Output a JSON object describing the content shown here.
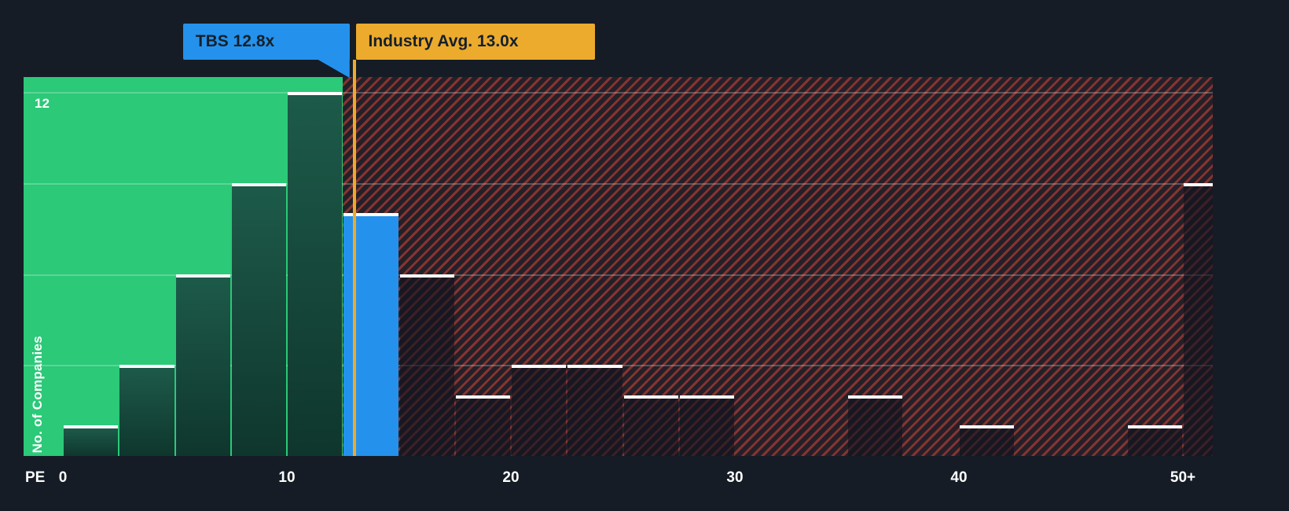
{
  "theme": {
    "background": "#151c26",
    "green": "#2bc978",
    "green_bar_top": "#1d5a49",
    "green_bar_bottom": "#0f362d",
    "blue": "#2492ec",
    "orange": "#ecab2d",
    "hatch_line": "rgba(224,75,58,0.5)",
    "hatch_bg": "rgba(224,75,58,0.08)",
    "dark_bar": "rgba(15,20,30,0.62)",
    "flag_text": "#15202b",
    "axis_text": "#ffffff"
  },
  "chart_data": {
    "type": "bar",
    "xlabel": "PE",
    "ylabel": "No. of Companies",
    "y_axis_top_label": "12",
    "xlim": [
      0,
      52.5
    ],
    "ylim": [
      0,
      12.5
    ],
    "gridlines_y": [
      3,
      6,
      9,
      12
    ],
    "bin_width": 2.5,
    "region_boundary": 12.5,
    "x_ticks": [
      {
        "value": 0,
        "label": "0"
      },
      {
        "value": 10,
        "label": "10"
      },
      {
        "value": 20,
        "label": "20"
      },
      {
        "value": 30,
        "label": "30"
      },
      {
        "value": 40,
        "label": "40"
      },
      {
        "value": 50,
        "label": "50+"
      }
    ],
    "bins": [
      {
        "start": 0,
        "count": 1
      },
      {
        "start": 2.5,
        "count": 3
      },
      {
        "start": 5,
        "count": 6
      },
      {
        "start": 7.5,
        "count": 9
      },
      {
        "start": 10,
        "count": 12
      },
      {
        "start": 12.5,
        "count": 8,
        "highlight": "company"
      },
      {
        "start": 15,
        "count": 6
      },
      {
        "start": 17.5,
        "count": 2
      },
      {
        "start": 20,
        "count": 3
      },
      {
        "start": 22.5,
        "count": 3
      },
      {
        "start": 25,
        "count": 2
      },
      {
        "start": 27.5,
        "count": 2
      },
      {
        "start": 30,
        "count": 0
      },
      {
        "start": 32.5,
        "count": 0
      },
      {
        "start": 35,
        "count": 2
      },
      {
        "start": 37.5,
        "count": 0
      },
      {
        "start": 40,
        "count": 1
      },
      {
        "start": 42.5,
        "count": 0
      },
      {
        "start": 45,
        "count": 0
      },
      {
        "start": 47.5,
        "count": 1
      },
      {
        "start": 50,
        "count": 9
      }
    ],
    "markers": [
      {
        "id": "company",
        "label": "TBS 12.8x",
        "value": 12.8
      },
      {
        "id": "industry",
        "label": "Industry Avg. 13.0x",
        "value": 13.0
      }
    ]
  }
}
